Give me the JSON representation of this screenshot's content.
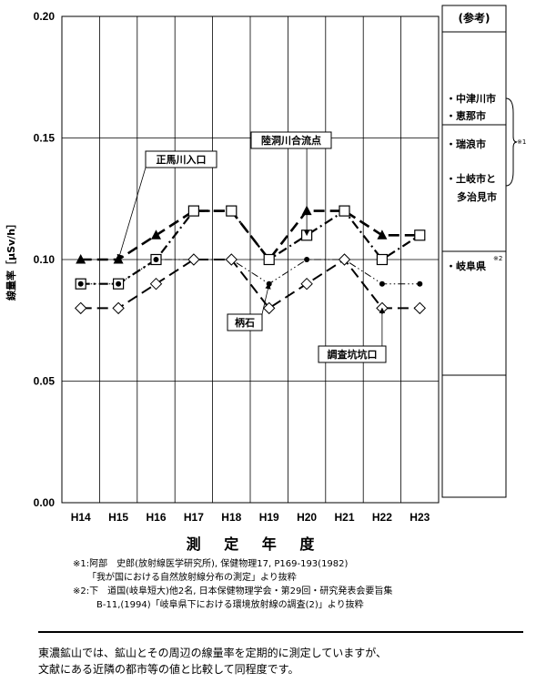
{
  "chart_data": {
    "type": "line",
    "xlabel": "測 定 年 度",
    "ylabel": "線量率［μSv/h］",
    "categories": [
      "H14",
      "H15",
      "H16",
      "H17",
      "H18",
      "H19",
      "H20",
      "H21",
      "H22",
      "H23"
    ],
    "ylim": [
      0,
      0.2
    ],
    "yticks": [
      "0.00",
      "0.05",
      "0.10",
      "0.15",
      "0.20"
    ],
    "grid": true,
    "series": [
      {
        "name": "正馬川入口",
        "marker": "triangle",
        "dash": "long-dash",
        "values": [
          0.1,
          0.1,
          0.11,
          0.12,
          0.12,
          0.1,
          0.12,
          0.12,
          0.11,
          0.11
        ]
      },
      {
        "name": "陸洞川合流点",
        "marker": "square",
        "dash": "dash-dot",
        "values": [
          0.09,
          0.09,
          0.1,
          0.12,
          0.12,
          0.1,
          0.11,
          0.12,
          0.1,
          0.11
        ]
      },
      {
        "name": "柄石",
        "marker": "dot",
        "dash": "dash-dot-dot",
        "values": [
          0.09,
          0.09,
          0.1,
          0.1,
          0.1,
          0.09,
          0.1,
          0.1,
          0.09,
          0.09
        ]
      },
      {
        "name": "調査坑坑口",
        "marker": "diamond",
        "dash": "long-dash",
        "values": [
          0.08,
          0.08,
          0.09,
          0.1,
          0.1,
          0.08,
          0.09,
          0.1,
          0.08,
          0.08
        ]
      }
    ],
    "callouts": [
      {
        "label": "正馬川入口",
        "series": 0,
        "point": 1
      },
      {
        "label": "陸洞川合流点",
        "series": 1,
        "point": 6
      },
      {
        "label": "柄石",
        "series": 2,
        "point": 5
      },
      {
        "label": "調査坑坑口",
        "series": 3,
        "point": 8
      }
    ]
  },
  "reference_panel": {
    "title": "(参考)",
    "items": [
      "・中津川市",
      "・恵那市",
      "・瑞浪市",
      "・土岐市と",
      "多治見市",
      "・岐阜県"
    ],
    "note1": "※1",
    "note2": "※2"
  },
  "footnotes": [
    "※1:阿部　史郎(放射線医学研究所), 保健物理17, P169-193(1982)",
    "「我が国における自然放射線分布の測定」より抜粋",
    "※2:下　道国(岐阜短大)他2名, 日本保健物理学会・第29回・研究発表会要旨集",
    "B-11,(1994)「岐阜県下における環境放射線の調査(2)」より抜粋"
  ],
  "summary": [
    "東濃鉱山では、鉱山とその周辺の線量率を定期的に測定していますが、",
    "文献にある近隣の都市等の値と比較して同程度です。"
  ]
}
